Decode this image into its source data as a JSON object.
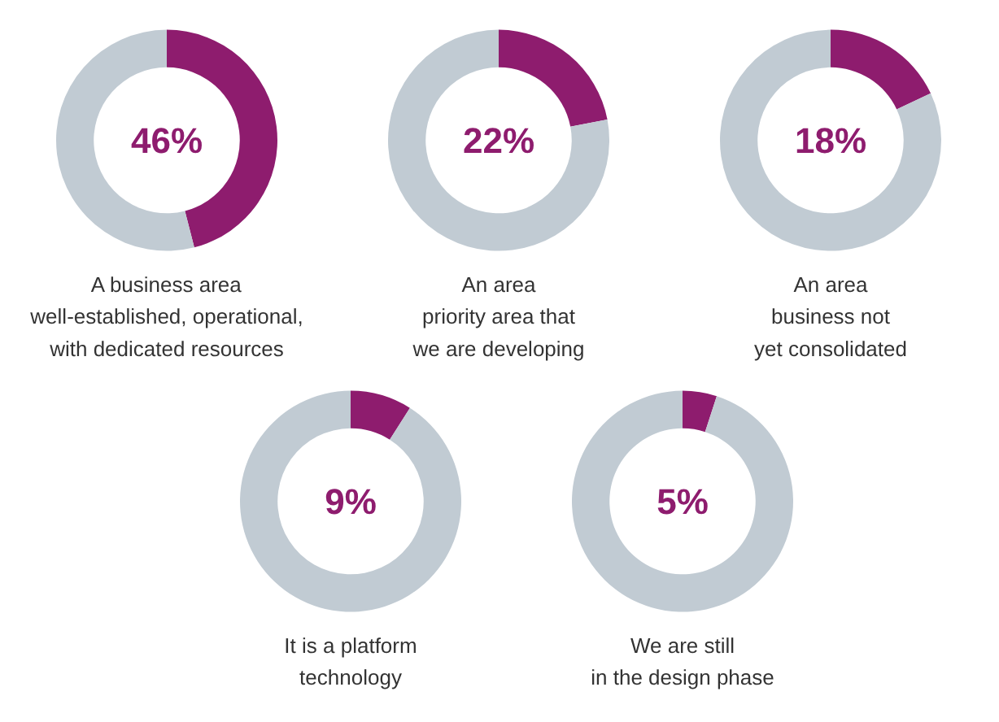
{
  "chart_data": [
    {
      "type": "donut",
      "title": "A business area\nwell-established, operational,\nwith dedicated resources",
      "categories": [
        null,
        null
      ],
      "values": [
        46,
        54
      ],
      "colors": [
        "#8e1c6e",
        "#c1cbd3"
      ],
      "annotations": [
        "46%"
      ]
    },
    {
      "type": "donut",
      "title": "An area\npriority area that\nwe are developing",
      "categories": [
        null,
        null
      ],
      "values": [
        22,
        78
      ],
      "colors": [
        "#8e1c6e",
        "#c1cbd3"
      ],
      "annotations": [
        "22%"
      ]
    },
    {
      "type": "donut",
      "title": "An area\nbusiness not\nyet consolidated",
      "categories": [
        null,
        null
      ],
      "values": [
        18,
        82
      ],
      "colors": [
        "#8e1c6e",
        "#c1cbd3"
      ],
      "annotations": [
        "18%"
      ]
    },
    {
      "type": "donut",
      "title": "It is a platform\ntechnology",
      "categories": [
        null,
        null
      ],
      "values": [
        9,
        91
      ],
      "colors": [
        "#8e1c6e",
        "#c1cbd3"
      ],
      "annotations": [
        "9%"
      ]
    },
    {
      "type": "donut",
      "title": "We are still\nin the design phase",
      "categories": [
        null,
        null
      ],
      "values": [
        5,
        95
      ],
      "colors": [
        "#8e1c6e",
        "#c1cbd3"
      ],
      "annotations": [
        "5%"
      ]
    }
  ]
}
